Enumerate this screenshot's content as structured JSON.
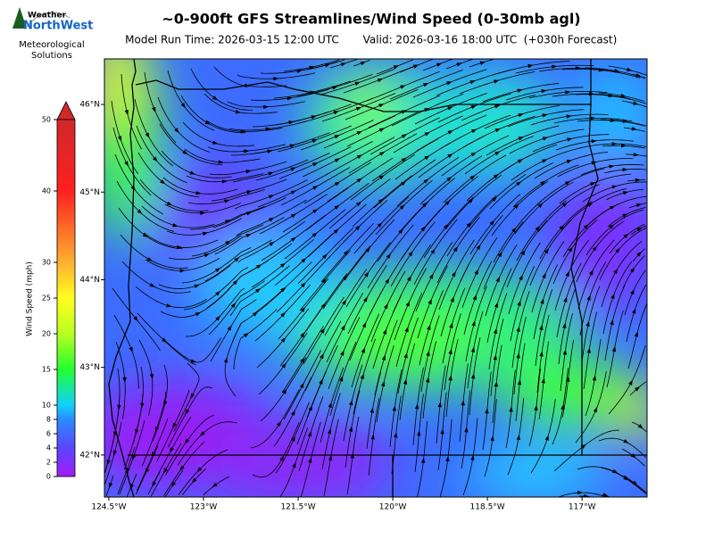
{
  "header": {
    "title": "~0-900ft GFS Streamlines/Wind Speed (0-30mb agl)",
    "run_time": "Model Run Time: 2026-03-15 12:00 UTC",
    "valid_time": "Valid: 2026-03-16 18:00 UTC  (+030h Forecast)"
  },
  "logo": {
    "line1": "Weather",
    "line2": "NorthWest",
    "caption": [
      "Meteorological",
      "Solutions"
    ]
  },
  "colorbar": {
    "label": "Wind Speed (mph)",
    "ylim": [
      0,
      50
    ],
    "yticks": [
      0,
      2,
      4,
      6,
      8,
      10,
      15,
      20,
      25,
      30,
      40,
      50
    ]
  },
  "map": {
    "xlim": [
      -124.57,
      -115.97
    ],
    "ylim": [
      41.52,
      46.52
    ],
    "xticks": [
      {
        "value": -124.5,
        "label": "124.5°W"
      },
      {
        "value": -123,
        "label": "123°W"
      },
      {
        "value": -121.5,
        "label": "121.5°W"
      },
      {
        "value": -120,
        "label": "120°W"
      },
      {
        "value": -118.5,
        "label": "118.5°W"
      },
      {
        "value": -117,
        "label": "117°W"
      }
    ],
    "yticks": [
      {
        "value": 46,
        "label": "46°N"
      },
      {
        "value": 45,
        "label": "45°N"
      },
      {
        "value": 44,
        "label": "44°N"
      },
      {
        "value": 43,
        "label": "43°N"
      },
      {
        "value": 42,
        "label": "42°N"
      }
    ]
  }
}
